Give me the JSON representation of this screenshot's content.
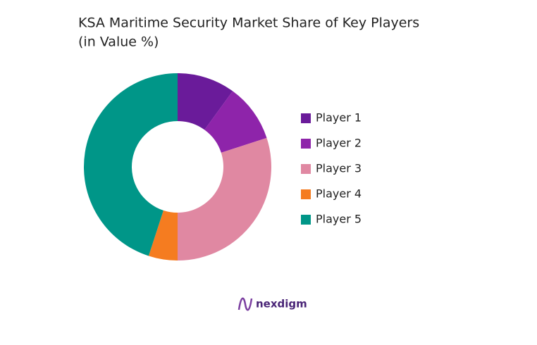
{
  "chart_data": {
    "type": "pie",
    "title": "KSA Maritime Security Market Share of Key Players",
    "subtitle": "(in Value %)",
    "categories": [
      "Player 1",
      "Player 2",
      "Player 3",
      "Player 4",
      "Player 5"
    ],
    "values": [
      10,
      10,
      30,
      5,
      45
    ],
    "colors": [
      "#6a1b9a",
      "#8e24aa",
      "#e088a2",
      "#f57c20",
      "#009688"
    ],
    "donut": true,
    "legend": "right"
  },
  "footer": {
    "logo": "nexdigm"
  }
}
